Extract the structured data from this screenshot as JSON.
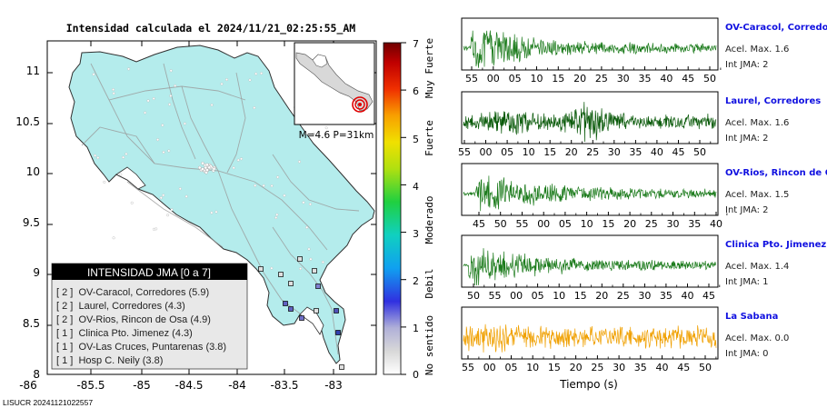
{
  "header": {
    "title": "Intensidad calculada el 2024/11/21_02:25:55_AM"
  },
  "map": {
    "lat_ticks": [
      "11",
      "10.5",
      "10",
      "9.5",
      "9",
      "8.5",
      "8"
    ],
    "lon_ticks": [
      "-86",
      "-85.5",
      "-85",
      "-84.5",
      "-84",
      "-83.5",
      "-83"
    ],
    "inset_label": "M=4.6 P=31km",
    "land_color": "#b4ecec",
    "legend": {
      "title": "INTENSIDAD JMA [0 a 7]",
      "items": [
        "[ 2 ]  OV-Caracol, Corredores (5.9)",
        "[ 2 ]  Laurel, Corredores (4.3)",
        "[ 2 ]  OV-Rios, Rincon de Osa (4.9)",
        "[ 1 ]  Clinica Pto. Jimenez (4.3)",
        "[ 1 ]  OV-Las Cruces, Puntarenas (3.8)",
        "[ 1 ]  Hosp C. Neily (3.8)"
      ]
    }
  },
  "colorbar": {
    "ticks": [
      "7",
      "6",
      "5",
      "4",
      "3",
      "2",
      "1",
      "0"
    ],
    "categories": [
      "Muy Fuerte",
      "Fuerte",
      "Moderado",
      "Debil",
      "No sentido"
    ]
  },
  "footer": {
    "id": "LISUCR 20241121022557"
  },
  "chart_data": {
    "type": "line",
    "xlabel": "Tiempo (s)",
    "grid": false,
    "panels": [
      {
        "name": "OV-Caracol, Corredore",
        "accel_label": "Acel. Max. 1.6",
        "int_label": "Int JMA: 2",
        "color": "#1a7a1a",
        "ticks": [
          "55",
          "00",
          "05",
          "10",
          "15",
          "20",
          "25",
          "30",
          "35",
          "40",
          "45",
          "50"
        ],
        "amplitude": 1.6
      },
      {
        "name": "Laurel, Corredores",
        "accel_label": "Acel. Max. 1.6",
        "int_label": "Int JMA: 2",
        "color": "#0a5a0a",
        "ticks": [
          "55",
          "00",
          "05",
          "10",
          "15",
          "20",
          "25",
          "30",
          "35",
          "40",
          "45",
          "50"
        ],
        "amplitude": 1.6
      },
      {
        "name": "OV-Rios, Rincon de Os",
        "accel_label": "Acel. Max. 1.5",
        "int_label": "Int JMA: 2",
        "color": "#1a7a1a",
        "ticks": [
          "45",
          "50",
          "55",
          "00",
          "05",
          "10",
          "15",
          "20",
          "25",
          "30",
          "35",
          "40"
        ],
        "amplitude": 1.5
      },
      {
        "name": "Clinica Pto. Jimenez",
        "accel_label": "Acel. Max. 1.4",
        "int_label": "Int JMA: 1",
        "color": "#1a7a1a",
        "ticks": [
          "50",
          "55",
          "00",
          "05",
          "10",
          "15",
          "20",
          "25",
          "30",
          "35",
          "40",
          "45"
        ],
        "amplitude": 1.4
      },
      {
        "name": "La Sabana",
        "accel_label": "Acel. Max. 0.0",
        "int_label": "Int JMA: 0",
        "color": "#f0a000",
        "ticks": [
          "55",
          "00",
          "05",
          "10",
          "15",
          "20",
          "25",
          "30",
          "35",
          "40",
          "45",
          "50"
        ],
        "amplitude": 0.0
      }
    ]
  }
}
